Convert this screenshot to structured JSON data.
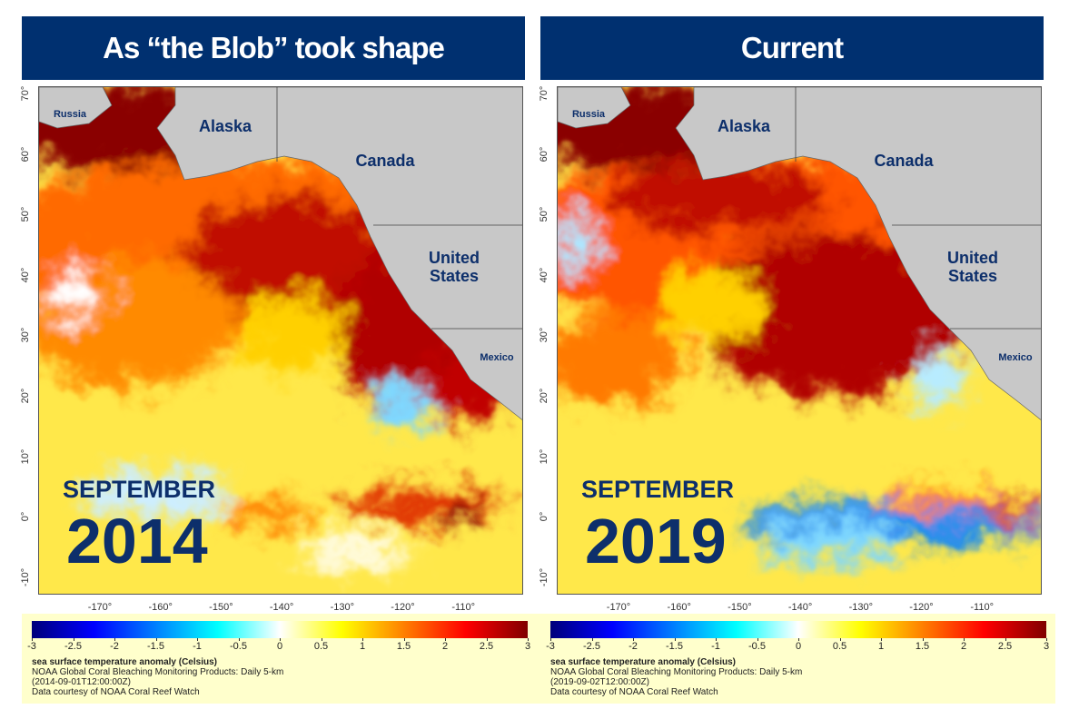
{
  "panels": [
    {
      "title": "As “the Blob” took shape",
      "lat_labels": [
        "70°",
        "60°",
        "50°",
        "40°",
        "30°",
        "20°",
        "10°",
        "0°",
        "-10°"
      ],
      "lon_labels": [
        "-170°",
        "-160°",
        "-150°",
        "-140°",
        "-130°",
        "-120°",
        "-110°"
      ],
      "regions": [
        "Russia",
        "Alaska",
        "Canada",
        "United States",
        "Mexico"
      ],
      "month": "SEPTEMBER",
      "year": "2014",
      "colorbar": {
        "ticks": [
          -3,
          -2.5,
          -2,
          -1.5,
          -1,
          -0.5,
          0,
          0.5,
          1,
          1.5,
          2,
          2.5,
          3
        ],
        "colors": [
          "#00007a",
          "#0000ff",
          "#0080ff",
          "#00ffff",
          "#ffffff",
          "#ffff00",
          "#ff8000",
          "#ff0000",
          "#800000"
        ]
      },
      "caption": [
        "sea surface temperature anomaly (Celsius)",
        "NOAA Global Coral Bleaching Monitoring Products: Daily 5-km",
        "(2014-09-01T12:00:00Z)",
        "Data courtesy of NOAA Coral Reef Watch"
      ]
    },
    {
      "title": "Current",
      "lat_labels": [
        "70°",
        "60°",
        "50°",
        "40°",
        "30°",
        "20°",
        "10°",
        "0°",
        "-10°"
      ],
      "lon_labels": [
        "-170°",
        "-160°",
        "-150°",
        "-140°",
        "-130°",
        "-120°",
        "-110°"
      ],
      "regions": [
        "Russia",
        "Alaska",
        "Canada",
        "United States",
        "Mexico"
      ],
      "month": "SEPTEMBER",
      "year": "2019",
      "colorbar": {
        "ticks": [
          -3,
          -2.5,
          -2,
          -1.5,
          -1,
          -0.5,
          0,
          0.5,
          1,
          1.5,
          2,
          2.5,
          3
        ],
        "colors": [
          "#00007a",
          "#0000ff",
          "#0080ff",
          "#00ffff",
          "#ffffff",
          "#ffff00",
          "#ff8000",
          "#ff0000",
          "#800000"
        ]
      },
      "caption": [
        "sea surface temperature anomaly (Celsius)",
        "NOAA Global Coral Bleaching Monitoring Products: Daily 5-km",
        "(2019-09-02T12:00:00Z)",
        "Data courtesy of NOAA Coral Reef Watch"
      ]
    }
  ]
}
